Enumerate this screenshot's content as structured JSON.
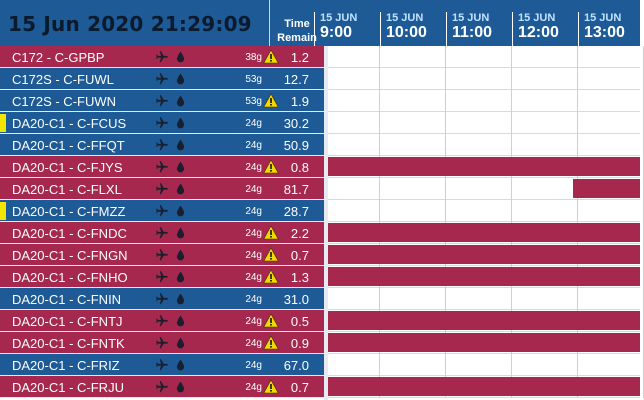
{
  "header": {
    "datetime": "15 Jun 2020 21:29:09",
    "time_remain_line1": "Time",
    "time_remain_line2": "Remain"
  },
  "timeline": [
    {
      "date": "15 JUN",
      "time": "9:00"
    },
    {
      "date": "15 JUN",
      "time": "10:00"
    },
    {
      "date": "15 JUN",
      "time": "11:00"
    },
    {
      "date": "15 JUN",
      "time": "12:00"
    },
    {
      "date": "15 JUN",
      "time": "13:00"
    }
  ],
  "aircraft": [
    {
      "name": "C172 - C-GPBP",
      "fuel": "38g",
      "remain": "1.2",
      "status": "red",
      "warn": true,
      "marker": false
    },
    {
      "name": "C172S - C-FUWL",
      "fuel": "53g",
      "remain": "12.7",
      "status": "blue",
      "warn": false,
      "marker": false
    },
    {
      "name": "C172S - C-FUWN",
      "fuel": "53g",
      "remain": "1.9",
      "status": "blue",
      "warn": true,
      "marker": false
    },
    {
      "name": "DA20-C1 - C-FCUS",
      "fuel": "24g",
      "remain": "30.2",
      "status": "blue",
      "warn": false,
      "marker": true
    },
    {
      "name": "DA20-C1 - C-FFQT",
      "fuel": "24g",
      "remain": "50.9",
      "status": "blue",
      "warn": false,
      "marker": false
    },
    {
      "name": "DA20-C1 - C-FJYS",
      "fuel": "24g",
      "remain": "0.8",
      "status": "red",
      "warn": true,
      "marker": false
    },
    {
      "name": "DA20-C1 - C-FLXL",
      "fuel": "24g",
      "remain": "81.7",
      "status": "red",
      "warn": false,
      "marker": false
    },
    {
      "name": "DA20-C1 - C-FMZZ",
      "fuel": "24g",
      "remain": "28.7",
      "status": "blue",
      "warn": false,
      "marker": true
    },
    {
      "name": "DA20-C1 - C-FNDC",
      "fuel": "24g",
      "remain": "2.2",
      "status": "red",
      "warn": true,
      "marker": false
    },
    {
      "name": "DA20-C1 - C-FNGN",
      "fuel": "24g",
      "remain": "0.7",
      "status": "red",
      "warn": true,
      "marker": false
    },
    {
      "name": "DA20-C1 - C-FNHO",
      "fuel": "24g",
      "remain": "1.3",
      "status": "red",
      "warn": true,
      "marker": false
    },
    {
      "name": "DA20-C1 - C-FNIN",
      "fuel": "24g",
      "remain": "31.0",
      "status": "blue",
      "warn": false,
      "marker": false
    },
    {
      "name": "DA20-C1 - C-FNTJ",
      "fuel": "24g",
      "remain": "0.5",
      "status": "red",
      "warn": true,
      "marker": false
    },
    {
      "name": "DA20-C1 - C-FNTK",
      "fuel": "24g",
      "remain": "0.9",
      "status": "red",
      "warn": true,
      "marker": false
    },
    {
      "name": "DA20-C1 - C-FRIZ",
      "fuel": "24g",
      "remain": "67.0",
      "status": "blue",
      "warn": false,
      "marker": false
    },
    {
      "name": "DA20-C1 - C-FRJU",
      "fuel": "24g",
      "remain": "0.7",
      "status": "red",
      "warn": true,
      "marker": false
    }
  ],
  "icons": {
    "plane": "airplane-icon",
    "drop": "fuel-drop-icon",
    "warn": "warning-icon"
  },
  "colors": {
    "red": "#a6284f",
    "blue": "#1d5a96",
    "marker": "#f2e600",
    "warn": "#f5d800"
  }
}
